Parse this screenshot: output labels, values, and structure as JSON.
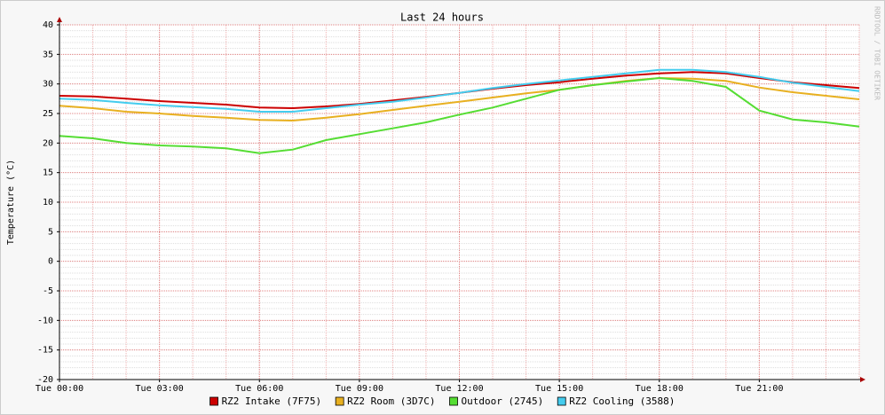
{
  "chart_data": {
    "type": "line",
    "title": "Last 24 hours",
    "y_label": "Temperature (°C)",
    "watermark": "RRDTOOL / TOBI OETIKER",
    "x": [
      0,
      1,
      2,
      3,
      4,
      5,
      6,
      7,
      8,
      9,
      10,
      11,
      12,
      13,
      14,
      15,
      16,
      17,
      18,
      19,
      20,
      21,
      22,
      23,
      24
    ],
    "xlim": [
      0,
      24
    ],
    "xticks": [
      {
        "value": 0,
        "label": "Tue 00:00"
      },
      {
        "value": 3,
        "label": "Tue 03:00"
      },
      {
        "value": 6,
        "label": "Tue 06:00"
      },
      {
        "value": 9,
        "label": "Tue 09:00"
      },
      {
        "value": 12,
        "label": "Tue 12:00"
      },
      {
        "value": 15,
        "label": "Tue 15:00"
      },
      {
        "value": 18,
        "label": "Tue 18:00"
      },
      {
        "value": 21,
        "label": "Tue 21:00"
      }
    ],
    "ylim": [
      -20,
      40
    ],
    "yticks": [
      -20,
      -15,
      -10,
      -5,
      0,
      5,
      10,
      15,
      20,
      25,
      30,
      35,
      40
    ],
    "grid": true,
    "legend": "bottom",
    "series": [
      {
        "name": "RZ2 Intake (7F75)",
        "color": "#cc0000",
        "values": [
          28.0,
          27.9,
          27.5,
          27.1,
          26.8,
          26.5,
          26.0,
          25.9,
          26.2,
          26.6,
          27.2,
          27.8,
          28.5,
          29.2,
          29.8,
          30.3,
          30.9,
          31.4,
          31.8,
          32.0,
          31.8,
          31.0,
          30.3,
          29.8,
          29.3
        ]
      },
      {
        "name": "RZ2 Room (3D7C)",
        "color": "#e8b020",
        "values": [
          26.3,
          25.9,
          25.3,
          25.0,
          24.6,
          24.3,
          23.9,
          23.8,
          24.3,
          24.9,
          25.6,
          26.3,
          27.0,
          27.7,
          28.4,
          29.0,
          29.8,
          30.5,
          31.0,
          30.9,
          30.5,
          29.4,
          28.6,
          28.0,
          27.4
        ]
      },
      {
        "name": "Outdoor (2745)",
        "color": "#55dd33",
        "values": [
          21.2,
          20.8,
          20.0,
          19.6,
          19.4,
          19.1,
          18.3,
          18.9,
          20.5,
          21.5,
          22.5,
          23.5,
          24.8,
          26.0,
          27.5,
          29.0,
          29.8,
          30.4,
          31.0,
          30.5,
          29.5,
          25.5,
          24.0,
          23.5,
          22.8
        ]
      },
      {
        "name": "RZ2 Cooling (3588)",
        "color": "#44ccee",
        "values": [
          27.5,
          27.3,
          26.8,
          26.4,
          26.1,
          25.8,
          25.3,
          25.3,
          25.9,
          26.5,
          27.0,
          27.7,
          28.5,
          29.3,
          30.0,
          30.6,
          31.2,
          31.8,
          32.4,
          32.4,
          32.0,
          31.2,
          30.2,
          29.5,
          28.8
        ]
      }
    ]
  }
}
